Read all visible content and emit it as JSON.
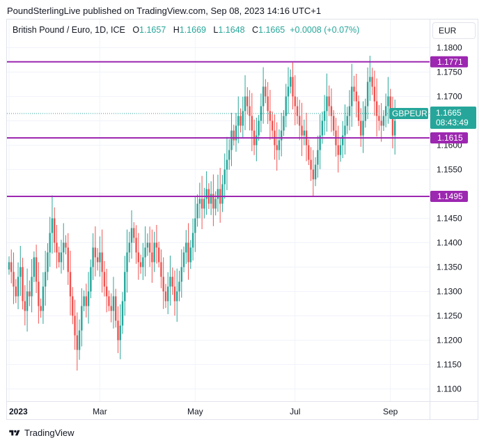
{
  "header": {
    "published_text": "PoundSterlingLive published on TradingView.com, Sep 08, 2023 14:16 UTC+1"
  },
  "symbol": {
    "name": "British Pound / Euro, 1D, ICE",
    "o_label": "O",
    "o_value": "1.1657",
    "h_label": "H",
    "h_value": "1.1669",
    "l_label": "L",
    "l_value": "1.1648",
    "c_label": "C",
    "c_value": "1.1665",
    "change": "+0.0008 (+0.07%)"
  },
  "currency_button": {
    "label": "EUR"
  },
  "footer": {
    "brand": "TradingView"
  },
  "colors": {
    "up": "#26a69a",
    "down": "#ef5350",
    "level_line": "#9c27b0",
    "grid": "#f0f3fa"
  },
  "chart_data": {
    "type": "candlestick",
    "ylim": [
      1.1075,
      1.1815
    ],
    "y_ticks": [
      "1.1800",
      "1.1750",
      "1.1700",
      "1.1650",
      "1.1600",
      "1.1550",
      "1.1500",
      "1.1450",
      "1.1400",
      "1.1350",
      "1.1300",
      "1.1250",
      "1.1200",
      "1.1150",
      "1.1100"
    ],
    "x_ticks": [
      {
        "label": "2023",
        "index": 0,
        "bold": true
      },
      {
        "label": "Mar",
        "index": 40,
        "bold": false
      },
      {
        "label": "May",
        "index": 82,
        "bold": false
      },
      {
        "label": "Jul",
        "index": 126,
        "bold": false
      },
      {
        "label": "Sep",
        "index": 168,
        "bold": false
      }
    ],
    "levels": [
      {
        "value": 1.1771,
        "label": "1.1771"
      },
      {
        "value": 1.1615,
        "label": "1.1615"
      },
      {
        "value": 1.1495,
        "label": "1.1495"
      }
    ],
    "last_price": {
      "value": 1.1665,
      "symbol": "GBPEUR",
      "label": "1.1665",
      "countdown": "08:43:49"
    },
    "closes": [
      1.136,
      1.134,
      1.131,
      1.129,
      1.133,
      1.135,
      1.128,
      1.126,
      1.13,
      1.129,
      1.133,
      1.137,
      1.132,
      1.127,
      1.126,
      1.131,
      1.134,
      1.138,
      1.142,
      1.145,
      1.14,
      1.138,
      1.136,
      1.138,
      1.14,
      1.139,
      1.134,
      1.129,
      1.125,
      1.121,
      1.118,
      1.122,
      1.127,
      1.129,
      1.127,
      1.13,
      1.135,
      1.139,
      1.137,
      1.136,
      1.138,
      1.134,
      1.131,
      1.129,
      1.127,
      1.126,
      1.129,
      1.124,
      1.12,
      1.123,
      1.128,
      1.134,
      1.138,
      1.14,
      1.143,
      1.141,
      1.138,
      1.136,
      1.135,
      1.137,
      1.139,
      1.14,
      1.138,
      1.136,
      1.14,
      1.139,
      1.136,
      1.133,
      1.13,
      1.128,
      1.131,
      1.133,
      1.131,
      1.128,
      1.13,
      1.132,
      1.135,
      1.138,
      1.14,
      1.136,
      1.139,
      1.142,
      1.145,
      1.148,
      1.149,
      1.147,
      1.149,
      1.151,
      1.148,
      1.15,
      1.147,
      1.149,
      1.151,
      1.148,
      1.152,
      1.155,
      1.157,
      1.159,
      1.163,
      1.161,
      1.164,
      1.166,
      1.164,
      1.167,
      1.17,
      1.168,
      1.166,
      1.163,
      1.16,
      1.162,
      1.165,
      1.168,
      1.172,
      1.17,
      1.167,
      1.165,
      1.163,
      1.16,
      1.159,
      1.161,
      1.163,
      1.166,
      1.17,
      1.172,
      1.174,
      1.17,
      1.168,
      1.166,
      1.164,
      1.162,
      1.163,
      1.16,
      1.157,
      1.155,
      1.153,
      1.156,
      1.159,
      1.162,
      1.165,
      1.167,
      1.17,
      1.168,
      1.166,
      1.163,
      1.16,
      1.158,
      1.16,
      1.162,
      1.164,
      1.166,
      1.168,
      1.172,
      1.171,
      1.169,
      1.165,
      1.162,
      1.165,
      1.168,
      1.173,
      1.174,
      1.172,
      1.169,
      1.166,
      1.165,
      1.164,
      1.166,
      1.168,
      1.17,
      1.167,
      1.162,
      1.165
    ]
  }
}
